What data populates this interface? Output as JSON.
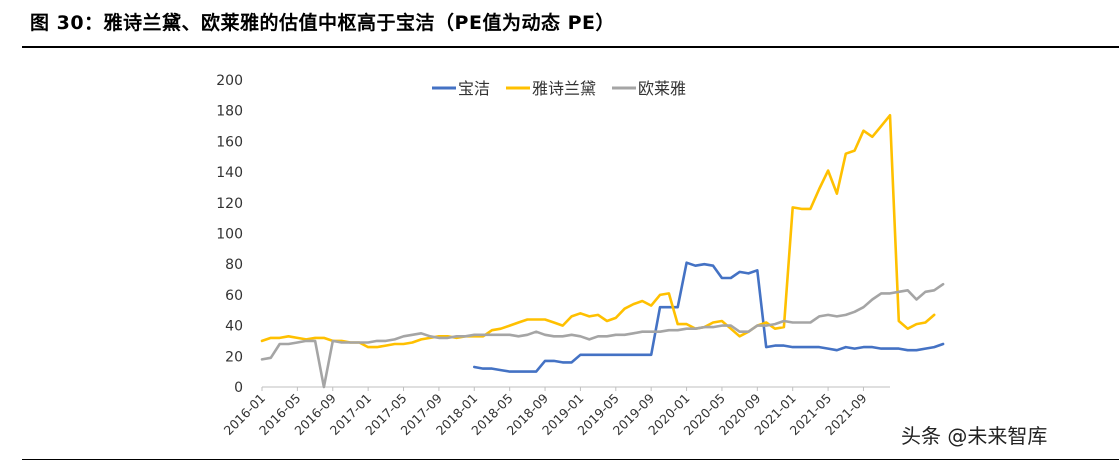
{
  "figure": {
    "title": "图 30：雅诗兰黛、欧莱雅的估值中枢高于宝洁（PE值为动态 PE）",
    "watermark": "头条 @未来智库"
  },
  "chart_data": {
    "type": "line",
    "xlabel": "",
    "ylabel": "",
    "ylim": [
      0,
      200
    ],
    "yticks": [
      0,
      20,
      40,
      60,
      80,
      100,
      120,
      140,
      160,
      180,
      200
    ],
    "xtick_labels": [
      "2016-01",
      "2016-05",
      "2016-09",
      "2017-01",
      "2017-05",
      "2017-09",
      "2018-01",
      "2018-05",
      "2018-09",
      "2019-01",
      "2019-05",
      "2019-09",
      "2020-01",
      "2020-05",
      "2020-09",
      "2021-01",
      "2021-05",
      "2021-09"
    ],
    "x_start": "2016-01",
    "x_end": "2021-12",
    "grid": false,
    "legend_position": "top-center",
    "series": [
      {
        "name": "宝洁",
        "color": "#4472C4",
        "start": "2018-01",
        "values": [
          13,
          12,
          12,
          11,
          10,
          10,
          10,
          10,
          17,
          17,
          16,
          16,
          21,
          21,
          21,
          21,
          21,
          21,
          21,
          21,
          21,
          52,
          52,
          52,
          81,
          79,
          80,
          79,
          71,
          71,
          75,
          74,
          76,
          26,
          27,
          27,
          26,
          26,
          26,
          26,
          25,
          24,
          26,
          25,
          26,
          26,
          25,
          25,
          25,
          24,
          24,
          25,
          26,
          28
        ]
      },
      {
        "name": "雅诗兰黛",
        "color": "#FFC000",
        "start": "2016-01",
        "values": [
          30,
          32,
          32,
          33,
          32,
          31,
          32,
          32,
          30,
          30,
          29,
          29,
          26,
          26,
          27,
          28,
          28,
          29,
          31,
          32,
          33,
          33,
          32,
          33,
          33,
          33,
          37,
          38,
          40,
          42,
          44,
          44,
          44,
          42,
          40,
          46,
          48,
          46,
          47,
          43,
          45,
          51,
          54,
          56,
          53,
          60,
          61,
          41,
          41,
          38,
          39,
          42,
          43,
          38,
          33,
          36,
          40,
          42,
          38,
          39,
          117,
          116,
          116,
          129,
          141,
          126,
          152,
          154,
          167,
          163,
          170,
          177,
          43,
          38,
          41,
          42,
          47
        ]
      },
      {
        "name": "欧莱雅",
        "color": "#A5A5A5",
        "start": "2016-01",
        "values": [
          18,
          19,
          28,
          28,
          29,
          30,
          30,
          0,
          30,
          29,
          29,
          29,
          29,
          30,
          30,
          31,
          33,
          34,
          35,
          33,
          32,
          32,
          33,
          33,
          34,
          34,
          34,
          34,
          34,
          33,
          34,
          36,
          34,
          33,
          33,
          34,
          33,
          31,
          33,
          33,
          34,
          34,
          35,
          36,
          36,
          36,
          37,
          37,
          38,
          38,
          39,
          39,
          40,
          40,
          36,
          36,
          40,
          40,
          41,
          43,
          42,
          42,
          42,
          46,
          47,
          46,
          47,
          49,
          52,
          57,
          61,
          61,
          62,
          63,
          57,
          62,
          63,
          67
        ]
      }
    ]
  }
}
